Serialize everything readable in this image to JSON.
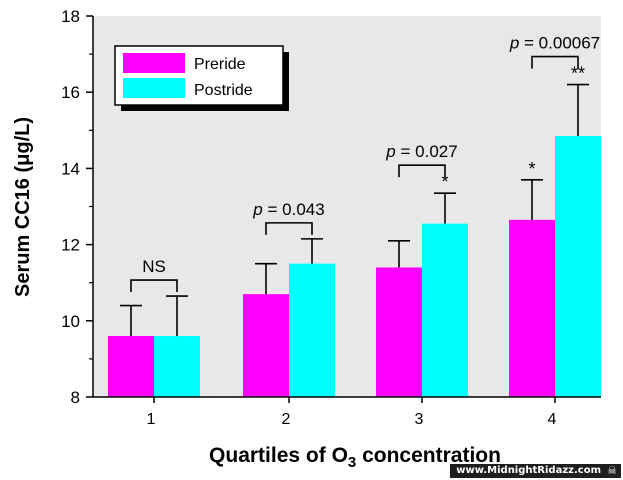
{
  "chart_data": {
    "type": "bar",
    "xlabel_main": "Quartiles of O",
    "xlabel_sub": "3",
    "xlabel_tail": " concentration",
    "ylabel": "Serum CC16 (μg/L)",
    "ylim": [
      8,
      18
    ],
    "yticks": [
      8,
      10,
      12,
      14,
      16,
      18
    ],
    "categories": [
      "1",
      "2",
      "3",
      "4"
    ],
    "series": [
      {
        "name": "Preride",
        "color": "#ff00ff",
        "values": [
          9.6,
          10.7,
          11.4,
          12.65
        ],
        "err_upper": [
          10.4,
          11.5,
          12.1,
          13.7
        ],
        "stars": [
          "",
          "",
          "",
          "*"
        ]
      },
      {
        "name": "Postride",
        "color": "#00ffff",
        "values": [
          9.6,
          11.5,
          12.55,
          14.85
        ],
        "err_upper": [
          10.65,
          12.15,
          13.35,
          16.2
        ],
        "stars": [
          "",
          "",
          "*",
          "**"
        ]
      }
    ],
    "annotations": [
      {
        "prefix": "",
        "value": "NS"
      },
      {
        "prefix": "p",
        "value": " = 0.043"
      },
      {
        "prefix": "p",
        "value": " = 0.027"
      },
      {
        "prefix": "p",
        "value": " = 0.00067"
      }
    ],
    "legend": {
      "placement": "top-left"
    },
    "background": "#e8e8e8",
    "grid": false
  },
  "watermark": {
    "text": "www.MidnightRidazz.com",
    "icon": "skull-icon"
  }
}
